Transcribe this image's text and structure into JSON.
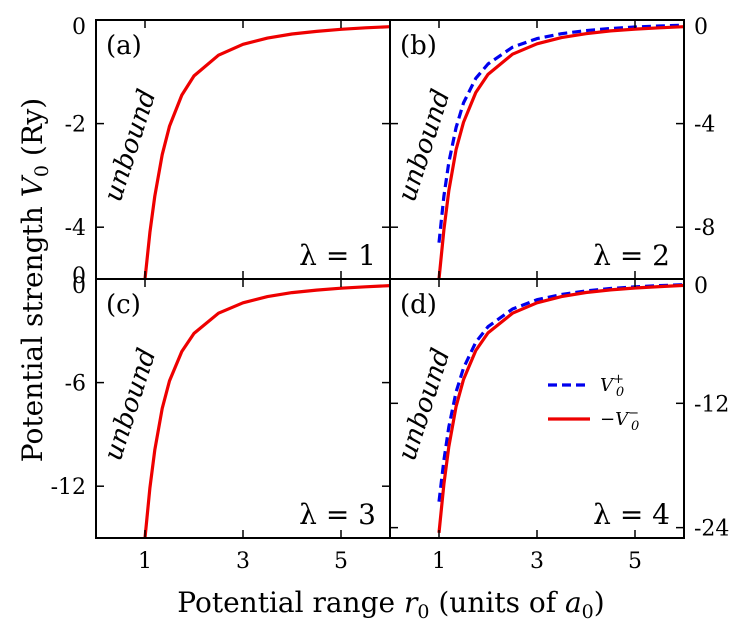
{
  "chart_data": {
    "type": "line",
    "xlabel_prefix": "Potential range ",
    "xlabel_var": "r",
    "xlabel_sub": "0",
    "xlabel_suffix_a": " (units of ",
    "xlabel_suffix_var": "a",
    "xlabel_suffix_sub": "0",
    "xlabel_suffix_b": ")",
    "ylabel_prefix": "Potential strength ",
    "ylabel_var": "V",
    "ylabel_sub": "0",
    "ylabel_suffix": " (Ry)",
    "xlim": [
      0,
      6
    ],
    "xticks": [
      1,
      3,
      5
    ],
    "region_label": "unbound",
    "legend": {
      "position": "center-right",
      "entries": [
        {
          "label": "V0+",
          "color": "#0000ee",
          "style": "dashed"
        },
        {
          "label": "−V0−",
          "color": "#ee0000",
          "style": "solid"
        }
      ]
    },
    "panels": [
      {
        "tag": "(a)",
        "lambda_text": "λ = 1",
        "ylim": [
          -5,
          0
        ],
        "yticks": [
          {
            "v": 0,
            "t": "0"
          },
          {
            "v": -2,
            "t": "-2"
          },
          {
            "v": -4,
            "t": "-4"
          }
        ],
        "ytick_side": "left",
        "bottom_ytick": {
          "v": -5,
          "t": "0"
        },
        "series": [
          {
            "name": "−V0−",
            "color": "#ee0000",
            "style": "solid",
            "x": [
              1.0,
              1.1,
              1.2,
              1.35,
              1.5,
              1.75,
              2.0,
              2.5,
              3.0,
              3.5,
              4.0,
              4.5,
              5.0,
              5.5,
              6.0
            ],
            "y": [
              -5.0,
              -4.1,
              -3.4,
              -2.6,
              -2.05,
              -1.45,
              -1.08,
              -0.68,
              -0.47,
              -0.35,
              -0.27,
              -0.22,
              -0.18,
              -0.15,
              -0.13
            ]
          }
        ]
      },
      {
        "tag": "(b)",
        "lambda_text": "λ = 2",
        "ylim": [
          -10,
          0
        ],
        "yticks": [
          {
            "v": 0,
            "t": "0"
          },
          {
            "v": -4,
            "t": "-4"
          },
          {
            "v": -8,
            "t": "-8"
          }
        ],
        "ytick_side": "right",
        "series": [
          {
            "name": "V0+",
            "color": "#0000ee",
            "style": "dashed",
            "x": [
              1.0,
              1.1,
              1.2,
              1.35,
              1.5,
              1.75,
              2.0,
              2.5,
              3.0,
              3.5,
              4.0,
              4.5,
              5.0,
              5.5,
              6.0
            ],
            "y": [
              -8.6,
              -6.8,
              -5.5,
              -4.15,
              -3.2,
              -2.25,
              -1.7,
              -1.05,
              -0.72,
              -0.53,
              -0.41,
              -0.33,
              -0.27,
              -0.23,
              -0.2
            ]
          },
          {
            "name": "−V0−",
            "color": "#ee0000",
            "style": "solid",
            "x": [
              1.0,
              1.1,
              1.2,
              1.35,
              1.5,
              1.75,
              2.0,
              2.5,
              3.0,
              3.5,
              4.0,
              4.5,
              5.0,
              5.5,
              6.0
            ],
            "y": [
              -10.0,
              -8.1,
              -6.6,
              -5.0,
              -3.95,
              -2.8,
              -2.1,
              -1.32,
              -0.92,
              -0.68,
              -0.53,
              -0.42,
              -0.35,
              -0.3,
              -0.26
            ]
          }
        ]
      },
      {
        "tag": "(c)",
        "lambda_text": "λ = 3",
        "ylim": [
          -15,
          0
        ],
        "yticks": [
          {
            "v": 0,
            "t": "0"
          },
          {
            "v": -6,
            "t": "-6"
          },
          {
            "v": -12,
            "t": "-12"
          }
        ],
        "ytick_side": "left",
        "series": [
          {
            "name": "−V0−",
            "color": "#ee0000",
            "style": "solid",
            "x": [
              1.0,
              1.1,
              1.2,
              1.35,
              1.5,
              1.75,
              2.0,
              2.5,
              3.0,
              3.5,
              4.0,
              4.5,
              5.0,
              5.5,
              6.0
            ],
            "y": [
              -15.0,
              -12.1,
              -9.9,
              -7.5,
              -5.9,
              -4.2,
              -3.15,
              -1.98,
              -1.38,
              -1.02,
              -0.79,
              -0.64,
              -0.53,
              -0.45,
              -0.38
            ]
          }
        ]
      },
      {
        "tag": "(d)",
        "lambda_text": "λ = 4",
        "ylim": [
          -25,
          0
        ],
        "yticks": [
          {
            "v": 0,
            "t": "0"
          },
          {
            "v": -12,
            "t": "-12"
          },
          {
            "v": -24,
            "t": "-24"
          }
        ],
        "ytick_side": "right",
        "show_legend": true,
        "series": [
          {
            "name": "V0+",
            "color": "#0000ee",
            "style": "dashed",
            "x": [
              1.0,
              1.1,
              1.2,
              1.35,
              1.5,
              1.75,
              2.0,
              2.5,
              3.0,
              3.5,
              4.0,
              4.5,
              5.0,
              5.5,
              6.0
            ],
            "y": [
              -21.5,
              -17.5,
              -14.3,
              -10.9,
              -8.6,
              -6.1,
              -4.6,
              -2.9,
              -2.0,
              -1.5,
              -1.15,
              -0.92,
              -0.76,
              -0.64,
              -0.55
            ]
          },
          {
            "name": "−V0−",
            "color": "#ee0000",
            "style": "solid",
            "x": [
              1.0,
              1.1,
              1.2,
              1.35,
              1.5,
              1.75,
              2.0,
              2.5,
              3.0,
              3.5,
              4.0,
              4.5,
              5.0,
              5.5,
              6.0
            ],
            "y": [
              -24.5,
              -19.8,
              -16.2,
              -12.3,
              -9.7,
              -6.9,
              -5.2,
              -3.3,
              -2.3,
              -1.7,
              -1.3,
              -1.05,
              -0.87,
              -0.73,
              -0.62
            ]
          }
        ]
      }
    ]
  }
}
